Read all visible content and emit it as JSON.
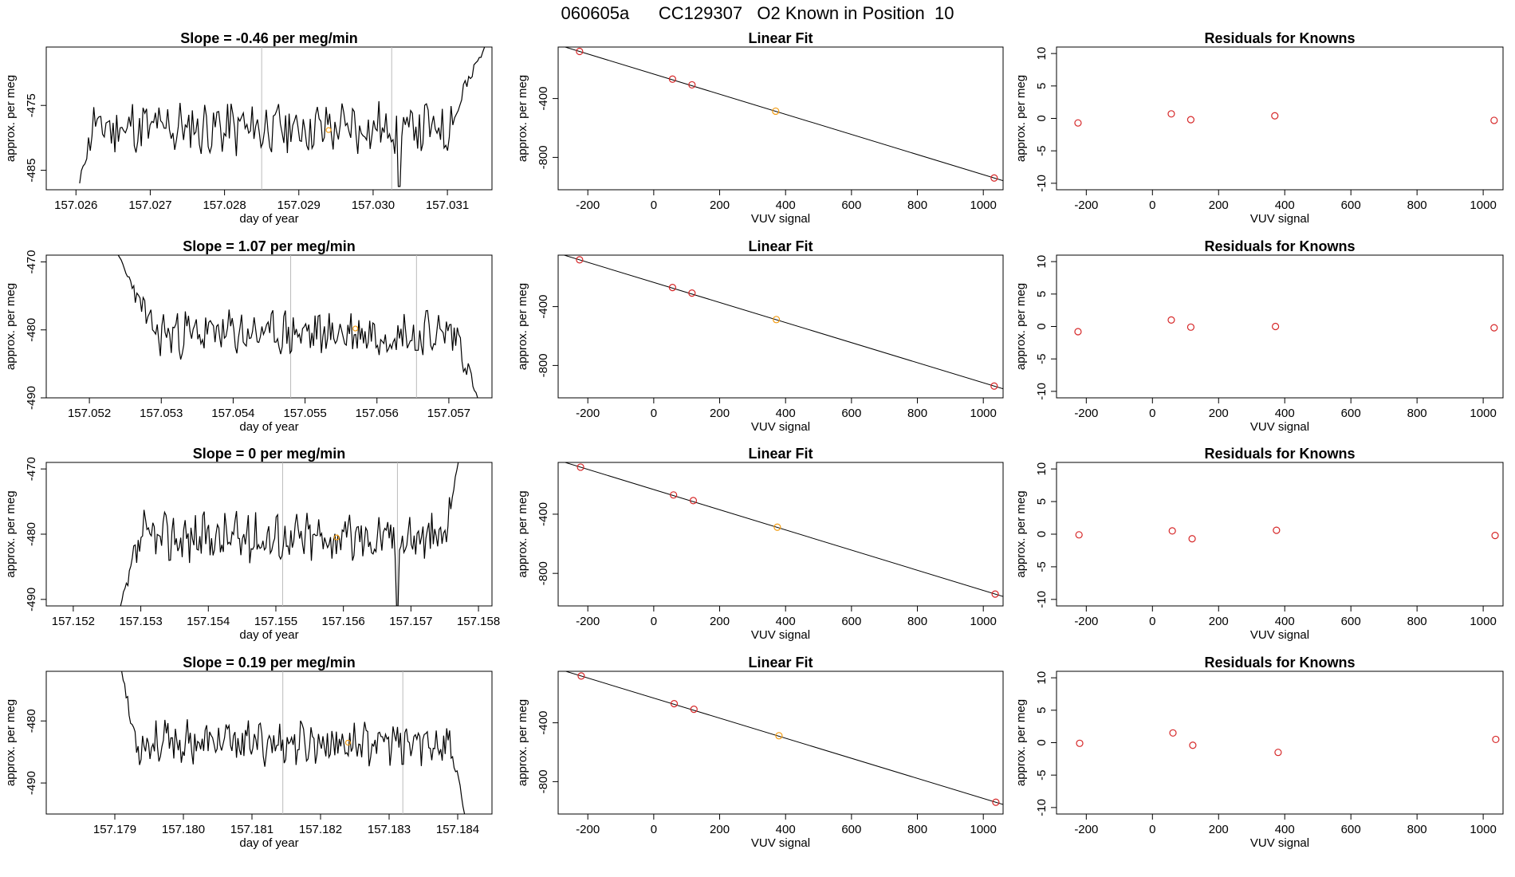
{
  "page": {
    "title": "060605a      CC129307   O2 Known in Position  10"
  },
  "colors": {
    "trace": "#000000",
    "known": "#d62728",
    "sample": "#f39c12",
    "fit": "#000000",
    "vline": "#bbbbbb"
  },
  "chart_data": [
    {
      "type": "line",
      "title": "Slope =  -0.46  per meg/min",
      "xlabel": "day of year",
      "ylabel": "approx. per meg",
      "xlim": [
        157.0256,
        157.0316
      ],
      "ylim": [
        -488,
        -466
      ],
      "xticks": [
        "157.026",
        "157.027",
        "157.028",
        "157.029",
        "157.030",
        "157.031"
      ],
      "yticks": [
        "-475",
        "-485"
      ],
      "vlines": [
        157.0285,
        157.03025
      ],
      "marker": [
        157.0294,
        -478.8
      ],
      "base": -478.5,
      "amp": 3.5,
      "trace": {
        "seed": 11,
        "start": 157.02605,
        "end": 157.0315,
        "startY": -487,
        "riseEnd": 157.0262,
        "endY": -466,
        "riseStart": 157.031,
        "dipX": 157.03035,
        "dipY": -487.5
      }
    },
    {
      "type": "scatter",
      "title": "Linear Fit",
      "xlabel": "VUV signal",
      "ylabel": "approx. per meg",
      "xlim": [
        -290,
        1060
      ],
      "ylim": [
        -1020,
        -50
      ],
      "xticks": [
        "-200",
        "0",
        "200",
        "400",
        "600",
        "800",
        "1000"
      ],
      "yticks": [
        "-400",
        "-800"
      ],
      "points": [
        [
          -225,
          -80
        ],
        [
          57,
          -268
        ],
        [
          116,
          -307
        ],
        [
          370,
          -486
        ],
        [
          1033,
          -940
        ]
      ],
      "orange_index": 3
    },
    {
      "type": "scatter",
      "title": "Residuals for Knowns",
      "xlabel": "VUV signal",
      "ylabel": "approx. per meg",
      "xlim": [
        -290,
        1060
      ],
      "ylim": [
        -11,
        11
      ],
      "xticks": [
        "-200",
        "0",
        "200",
        "400",
        "600",
        "800",
        "1000"
      ],
      "yticks": [
        "10",
        "5",
        "0",
        "-5",
        "-10"
      ],
      "points": [
        [
          -225,
          -0.7
        ],
        [
          57,
          0.7
        ],
        [
          116,
          -0.2
        ],
        [
          370,
          0.4
        ],
        [
          1033,
          -0.3
        ]
      ]
    },
    {
      "type": "line",
      "title": "Slope =  1.07  per meg/min",
      "xlabel": "day of year",
      "ylabel": "approx. per meg",
      "xlim": [
        157.0514,
        157.0576
      ],
      "ylim": [
        -490,
        -469
      ],
      "xticks": [
        "157.052",
        "157.053",
        "157.054",
        "157.055",
        "157.056",
        "157.057"
      ],
      "yticks": [
        "-470",
        "-480",
        "-490"
      ],
      "vlines": [
        157.0548,
        157.05655
      ],
      "marker": [
        157.0557,
        -479.8
      ],
      "base": -480.5,
      "amp": 2.8,
      "trace": {
        "seed": 23,
        "start": 157.0524,
        "end": 157.0574,
        "startY": -469,
        "riseEnd": 157.0529,
        "endY": -490,
        "riseStart": 157.0571,
        "dipX": 157.05655,
        "dipY": -483
      }
    },
    {
      "type": "scatter",
      "title": "Linear Fit",
      "xlabel": "VUV signal",
      "ylabel": "approx. per meg",
      "xlim": [
        -290,
        1060
      ],
      "ylim": [
        -1020,
        -50
      ],
      "xticks": [
        "-200",
        "0",
        "200",
        "400",
        "600",
        "800",
        "1000"
      ],
      "yticks": [
        "-400",
        "-800"
      ],
      "points": [
        [
          -225,
          -82
        ],
        [
          57,
          -270
        ],
        [
          116,
          -308
        ],
        [
          372,
          -488
        ],
        [
          1033,
          -940
        ]
      ],
      "orange_index": 3
    },
    {
      "type": "scatter",
      "title": "Residuals for Knowns",
      "xlabel": "VUV signal",
      "ylabel": "approx. per meg",
      "xlim": [
        -290,
        1060
      ],
      "ylim": [
        -11,
        11
      ],
      "xticks": [
        "-200",
        "0",
        "200",
        "400",
        "600",
        "800",
        "1000"
      ],
      "yticks": [
        "10",
        "5",
        "0",
        "-5",
        "-10"
      ],
      "points": [
        [
          -225,
          -0.8
        ],
        [
          57,
          1.0
        ],
        [
          116,
          -0.1
        ],
        [
          372,
          0.0
        ],
        [
          1033,
          -0.2
        ]
      ]
    },
    {
      "type": "line",
      "title": "Slope =  0  per meg/min",
      "xlabel": "day of year",
      "ylabel": "approx. per meg",
      "xlim": [
        157.1516,
        157.1582
      ],
      "ylim": [
        -491,
        -469
      ],
      "xticks": [
        "157.152",
        "157.153",
        "157.154",
        "157.155",
        "157.156",
        "157.157",
        "157.158"
      ],
      "yticks": [
        "-470",
        "-480",
        "-490"
      ],
      "vlines": [
        157.1551,
        157.1568
      ],
      "marker": [
        157.1559,
        -480.5
      ],
      "base": -480.5,
      "amp": 3.2,
      "trace": {
        "seed": 37,
        "start": 157.1527,
        "end": 157.1577,
        "startY": -491,
        "riseEnd": 157.153,
        "endY": -469,
        "riseStart": 157.1575,
        "dipX": 157.1568,
        "dipY": -491
      }
    },
    {
      "type": "scatter",
      "title": "Linear Fit",
      "xlabel": "VUV signal",
      "ylabel": "approx. per meg",
      "xlim": [
        -290,
        1060
      ],
      "ylim": [
        -1020,
        -50
      ],
      "xticks": [
        "-200",
        "0",
        "200",
        "400",
        "600",
        "800",
        "1000"
      ],
      "yticks": [
        "-400",
        "-800"
      ],
      "points": [
        [
          -222,
          -82
        ],
        [
          60,
          -270
        ],
        [
          120,
          -308
        ],
        [
          375,
          -488
        ],
        [
          1036,
          -940
        ]
      ],
      "orange_index": 3
    },
    {
      "type": "scatter",
      "title": "Residuals for Knowns",
      "xlabel": "VUV signal",
      "ylabel": "approx. per meg",
      "xlim": [
        -290,
        1060
      ],
      "ylim": [
        -11,
        11
      ],
      "xticks": [
        "-200",
        "0",
        "200",
        "400",
        "600",
        "800",
        "1000"
      ],
      "yticks": [
        "10",
        "5",
        "0",
        "-5",
        "-10"
      ],
      "points": [
        [
          -222,
          -0.1
        ],
        [
          60,
          0.5
        ],
        [
          120,
          -0.7
        ],
        [
          375,
          0.6
        ],
        [
          1036,
          -0.2
        ]
      ]
    },
    {
      "type": "line",
      "title": "Slope =  0.19  per meg/min",
      "xlabel": "day of year",
      "ylabel": "approx. per meg",
      "xlim": [
        157.178,
        157.1845
      ],
      "ylim": [
        -495,
        -472
      ],
      "xticks": [
        "157.179",
        "157.180",
        "157.181",
        "157.182",
        "157.183",
        "157.184"
      ],
      "yticks": [
        "-480",
        "-490"
      ],
      "vlines": [
        157.18145,
        157.1832
      ],
      "marker": [
        157.1824,
        -483.5
      ],
      "base": -483.5,
      "amp": 2.8,
      "trace": {
        "seed": 53,
        "start": 157.1791,
        "end": 157.1841,
        "startY": -472,
        "riseEnd": 157.1793,
        "endY": -495,
        "riseStart": 157.1839,
        "dipX": 157.1832,
        "dipY": -487
      }
    },
    {
      "type": "scatter",
      "title": "Linear Fit",
      "xlabel": "VUV signal",
      "ylabel": "approx. per meg",
      "xlim": [
        -290,
        1060
      ],
      "ylim": [
        -1020,
        -50
      ],
      "xticks": [
        "-200",
        "0",
        "200",
        "400",
        "600",
        "800",
        "1000"
      ],
      "yticks": [
        "-400",
        "-800"
      ],
      "points": [
        [
          -220,
          -82
        ],
        [
          62,
          -270
        ],
        [
          122,
          -308
        ],
        [
          380,
          -488
        ],
        [
          1038,
          -940
        ]
      ],
      "orange_index": 3
    },
    {
      "type": "scatter",
      "title": "Residuals for Knowns",
      "xlabel": "VUV signal",
      "ylabel": "approx. per meg",
      "xlim": [
        -290,
        1060
      ],
      "ylim": [
        -11,
        11
      ],
      "xticks": [
        "-200",
        "0",
        "200",
        "400",
        "600",
        "800",
        "1000"
      ],
      "yticks": [
        "10",
        "5",
        "0",
        "-5",
        "-10"
      ],
      "points": [
        [
          -220,
          -0.1
        ],
        [
          62,
          1.5
        ],
        [
          122,
          -0.4
        ],
        [
          380,
          -1.5
        ],
        [
          1038,
          0.5
        ]
      ]
    }
  ]
}
